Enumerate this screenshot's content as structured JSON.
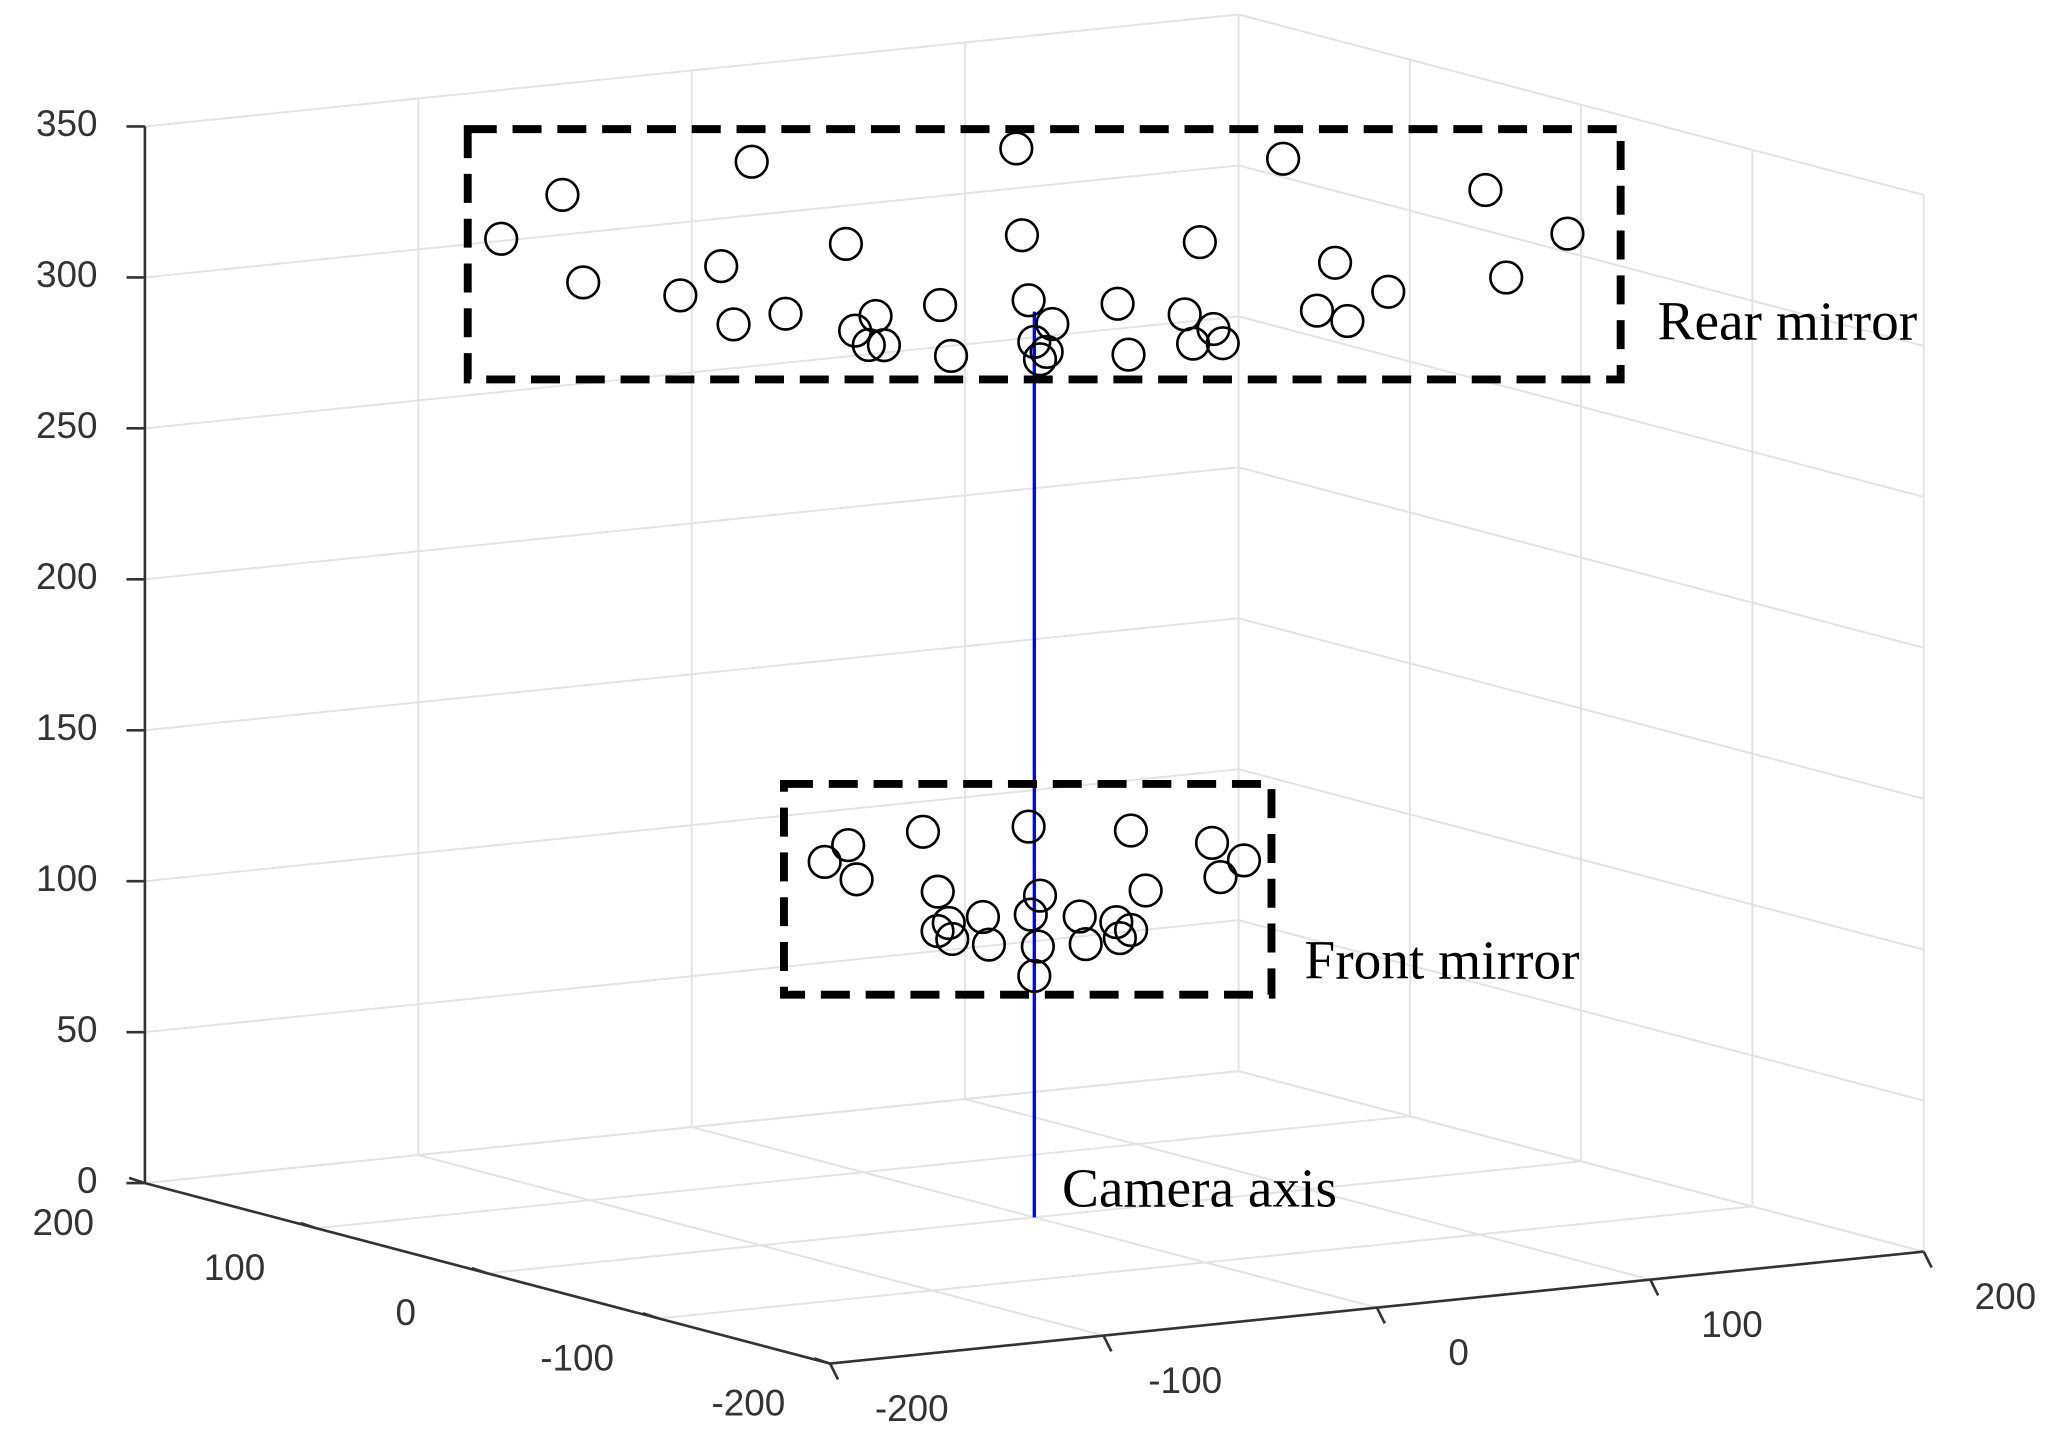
{
  "chart_data": {
    "type": "scatter3d",
    "xlim": [
      -200,
      200
    ],
    "ylim": [
      -200,
      200
    ],
    "zlim": [
      0,
      350
    ],
    "xticks": [
      -200,
      -100,
      0,
      100,
      200
    ],
    "yticks": [
      -200,
      -100,
      0,
      100,
      200
    ],
    "zticks": [
      0,
      50,
      100,
      150,
      200,
      250,
      300,
      350
    ],
    "grid": true,
    "series": [
      {
        "color": "#000000",
        "marker": "circle",
        "x": [
          0,
          55,
          48,
          28,
          0,
          -28,
          -48,
          -55,
          -48,
          -28,
          0,
          28,
          48,
          110,
          95,
          55,
          0,
          -55,
          -95,
          -110,
          -95,
          -55,
          0,
          55,
          95,
          165,
          143,
          83,
          0,
          -83,
          -143,
          -165,
          -143,
          -83,
          0,
          83,
          143
        ],
        "y": [
          0,
          0,
          28,
          48,
          55,
          48,
          28,
          0,
          -28,
          -48,
          -55,
          -48,
          -28,
          0,
          55,
          95,
          110,
          95,
          55,
          0,
          -55,
          -95,
          -110,
          -95,
          -55,
          0,
          83,
          143,
          165,
          143,
          83,
          0,
          -83,
          -143,
          -165,
          -143,
          -83
        ],
        "z": [
          290,
          294,
          294,
          294,
          294,
          294,
          294,
          294,
          294,
          294,
          294,
          294,
          294,
          306,
          306,
          306,
          306,
          306,
          306,
          306,
          306,
          306,
          306,
          306,
          306,
          325,
          325,
          325,
          325,
          325,
          325,
          325,
          325,
          325,
          325,
          325,
          325
        ]
      },
      {
        "color": "#000000",
        "marker": "circle",
        "x": [
          0,
          30,
          26,
          15,
          0,
          -15,
          -26,
          -30,
          -26,
          -15,
          0,
          15,
          26,
          65,
          56,
          33,
          0,
          -33,
          -56,
          -65,
          -56,
          -33,
          0,
          33,
          56
        ],
        "y": [
          0,
          0,
          15,
          26,
          30,
          26,
          15,
          0,
          -15,
          -26,
          -30,
          -26,
          -15,
          0,
          33,
          56,
          65,
          56,
          33,
          0,
          -33,
          -56,
          -65,
          -56,
          -33
        ],
        "z": [
          80,
          95,
          95,
          95,
          95,
          95,
          95,
          95,
          95,
          95,
          95,
          95,
          95,
          118,
          118,
          118,
          118,
          118,
          118,
          118,
          118,
          118,
          118,
          118,
          118
        ]
      }
    ],
    "axis_line": {
      "color": "#0000ff",
      "x": [
        0,
        0
      ],
      "y": [
        0,
        0
      ],
      "z": [
        0,
        300
      ]
    },
    "annotations": [
      "Rear mirror",
      "Front mirror",
      "Camera axis"
    ]
  }
}
